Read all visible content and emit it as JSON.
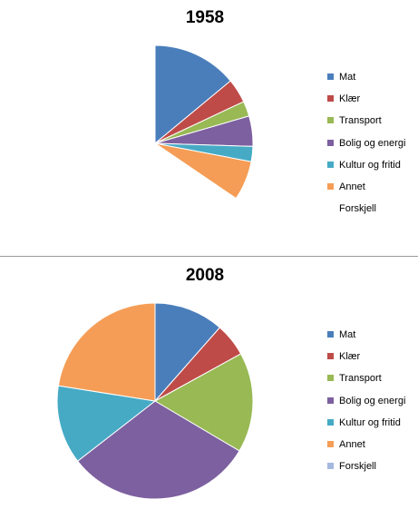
{
  "chart_data": [
    {
      "type": "pie",
      "title": "1958",
      "categories": [
        "Mat",
        "Klær",
        "Transport",
        "Bolig og energi",
        "Kultur og fritid",
        "Annet",
        "Forskjell"
      ],
      "values": [
        14,
        4,
        2.5,
        5,
        2.5,
        6.5,
        65.5
      ],
      "colors": [
        "#4a7ebb",
        "#be4b48",
        "#98b954",
        "#7d60a0",
        "#46aac5",
        "#f59d56",
        "#ffffff"
      ],
      "legend_position": "right",
      "legend_colors": [
        "#4a7ebb",
        "#be4b48",
        "#98b954",
        "#7d60a0",
        "#46aac5",
        "#f59d56",
        "#ffffff"
      ]
    },
    {
      "type": "pie",
      "title": "2008",
      "categories": [
        "Mat",
        "Klær",
        "Transport",
        "Bolig og energi",
        "Kultur og fritid",
        "Annet",
        "Forskjell"
      ],
      "values": [
        11.5,
        5.5,
        16.5,
        31,
        13,
        22.5,
        0
      ],
      "colors": [
        "#4a7ebb",
        "#be4b48",
        "#98b954",
        "#7d60a0",
        "#46aac5",
        "#f59d56",
        "#a5b8e0"
      ],
      "legend_position": "right",
      "legend_colors": [
        "#4a7ebb",
        "#be4b48",
        "#98b954",
        "#7d60a0",
        "#46aac5",
        "#f59d56",
        "#a5b8e0"
      ]
    }
  ]
}
